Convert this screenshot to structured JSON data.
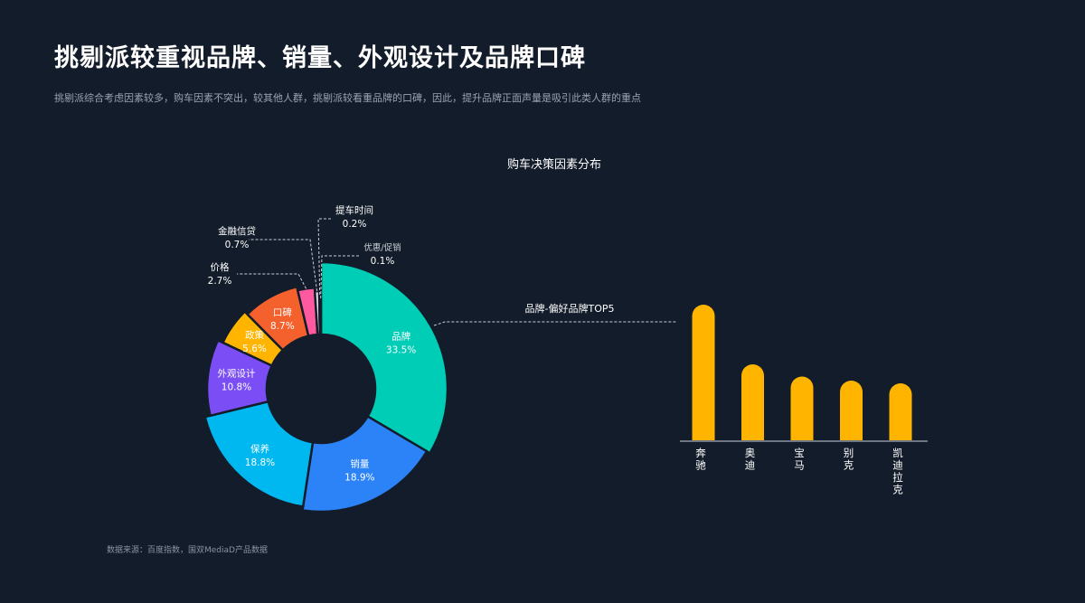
{
  "page": {
    "title": "挑剔派较重视品牌、销量、外观设计及品牌口碑",
    "subtitle": "挑剔派综合考虑因素较多，购车因素不突出，较其他人群，挑剔派较看重品牌的口碑，因此，提升品牌正面声量是吸引此类人群的重点",
    "source": "数据来源：百度指数，国双MediaD产品数据"
  },
  "chart_data": [
    {
      "type": "pie",
      "title": "购车决策因素分布",
      "unit": "%",
      "slices": [
        {
          "label": "品牌",
          "value": 33.5,
          "display": "33.5%",
          "color": "#00cdb6"
        },
        {
          "label": "销量",
          "value": 18.9,
          "display": "18.9%",
          "color": "#2b83f7"
        },
        {
          "label": "保养",
          "value": 18.8,
          "display": "18.8%",
          "color": "#00b8f0"
        },
        {
          "label": "外观设计",
          "value": 10.8,
          "display": "10.8%",
          "color": "#7a4df5"
        },
        {
          "label": "政策",
          "value": 5.6,
          "display": "5.6%",
          "color": "#ffb400"
        },
        {
          "label": "口碑",
          "value": 8.7,
          "display": "8.7%",
          "color": "#f4612c"
        },
        {
          "label": "价格",
          "value": 2.7,
          "display": "2.7%",
          "color": "#ff5aa0"
        },
        {
          "label": "金融信贷",
          "value": 0.7,
          "display": "0.7%",
          "color": "#e8e8e8"
        },
        {
          "label": "提车时间",
          "value": 0.2,
          "display": "0.2%",
          "color": "#cfcfcf"
        },
        {
          "label": "优惠/促销",
          "value": 0.1,
          "display": "0.1%",
          "color": "#bdbdbd"
        }
      ]
    },
    {
      "type": "bar",
      "title": "品牌-偏好品牌TOP5",
      "categories": [
        "奔驰",
        "奥迪",
        "宝马",
        "别克",
        "凯迪拉克"
      ],
      "values": [
        100,
        56,
        47,
        44,
        42
      ],
      "color": "#ffb400"
    }
  ]
}
